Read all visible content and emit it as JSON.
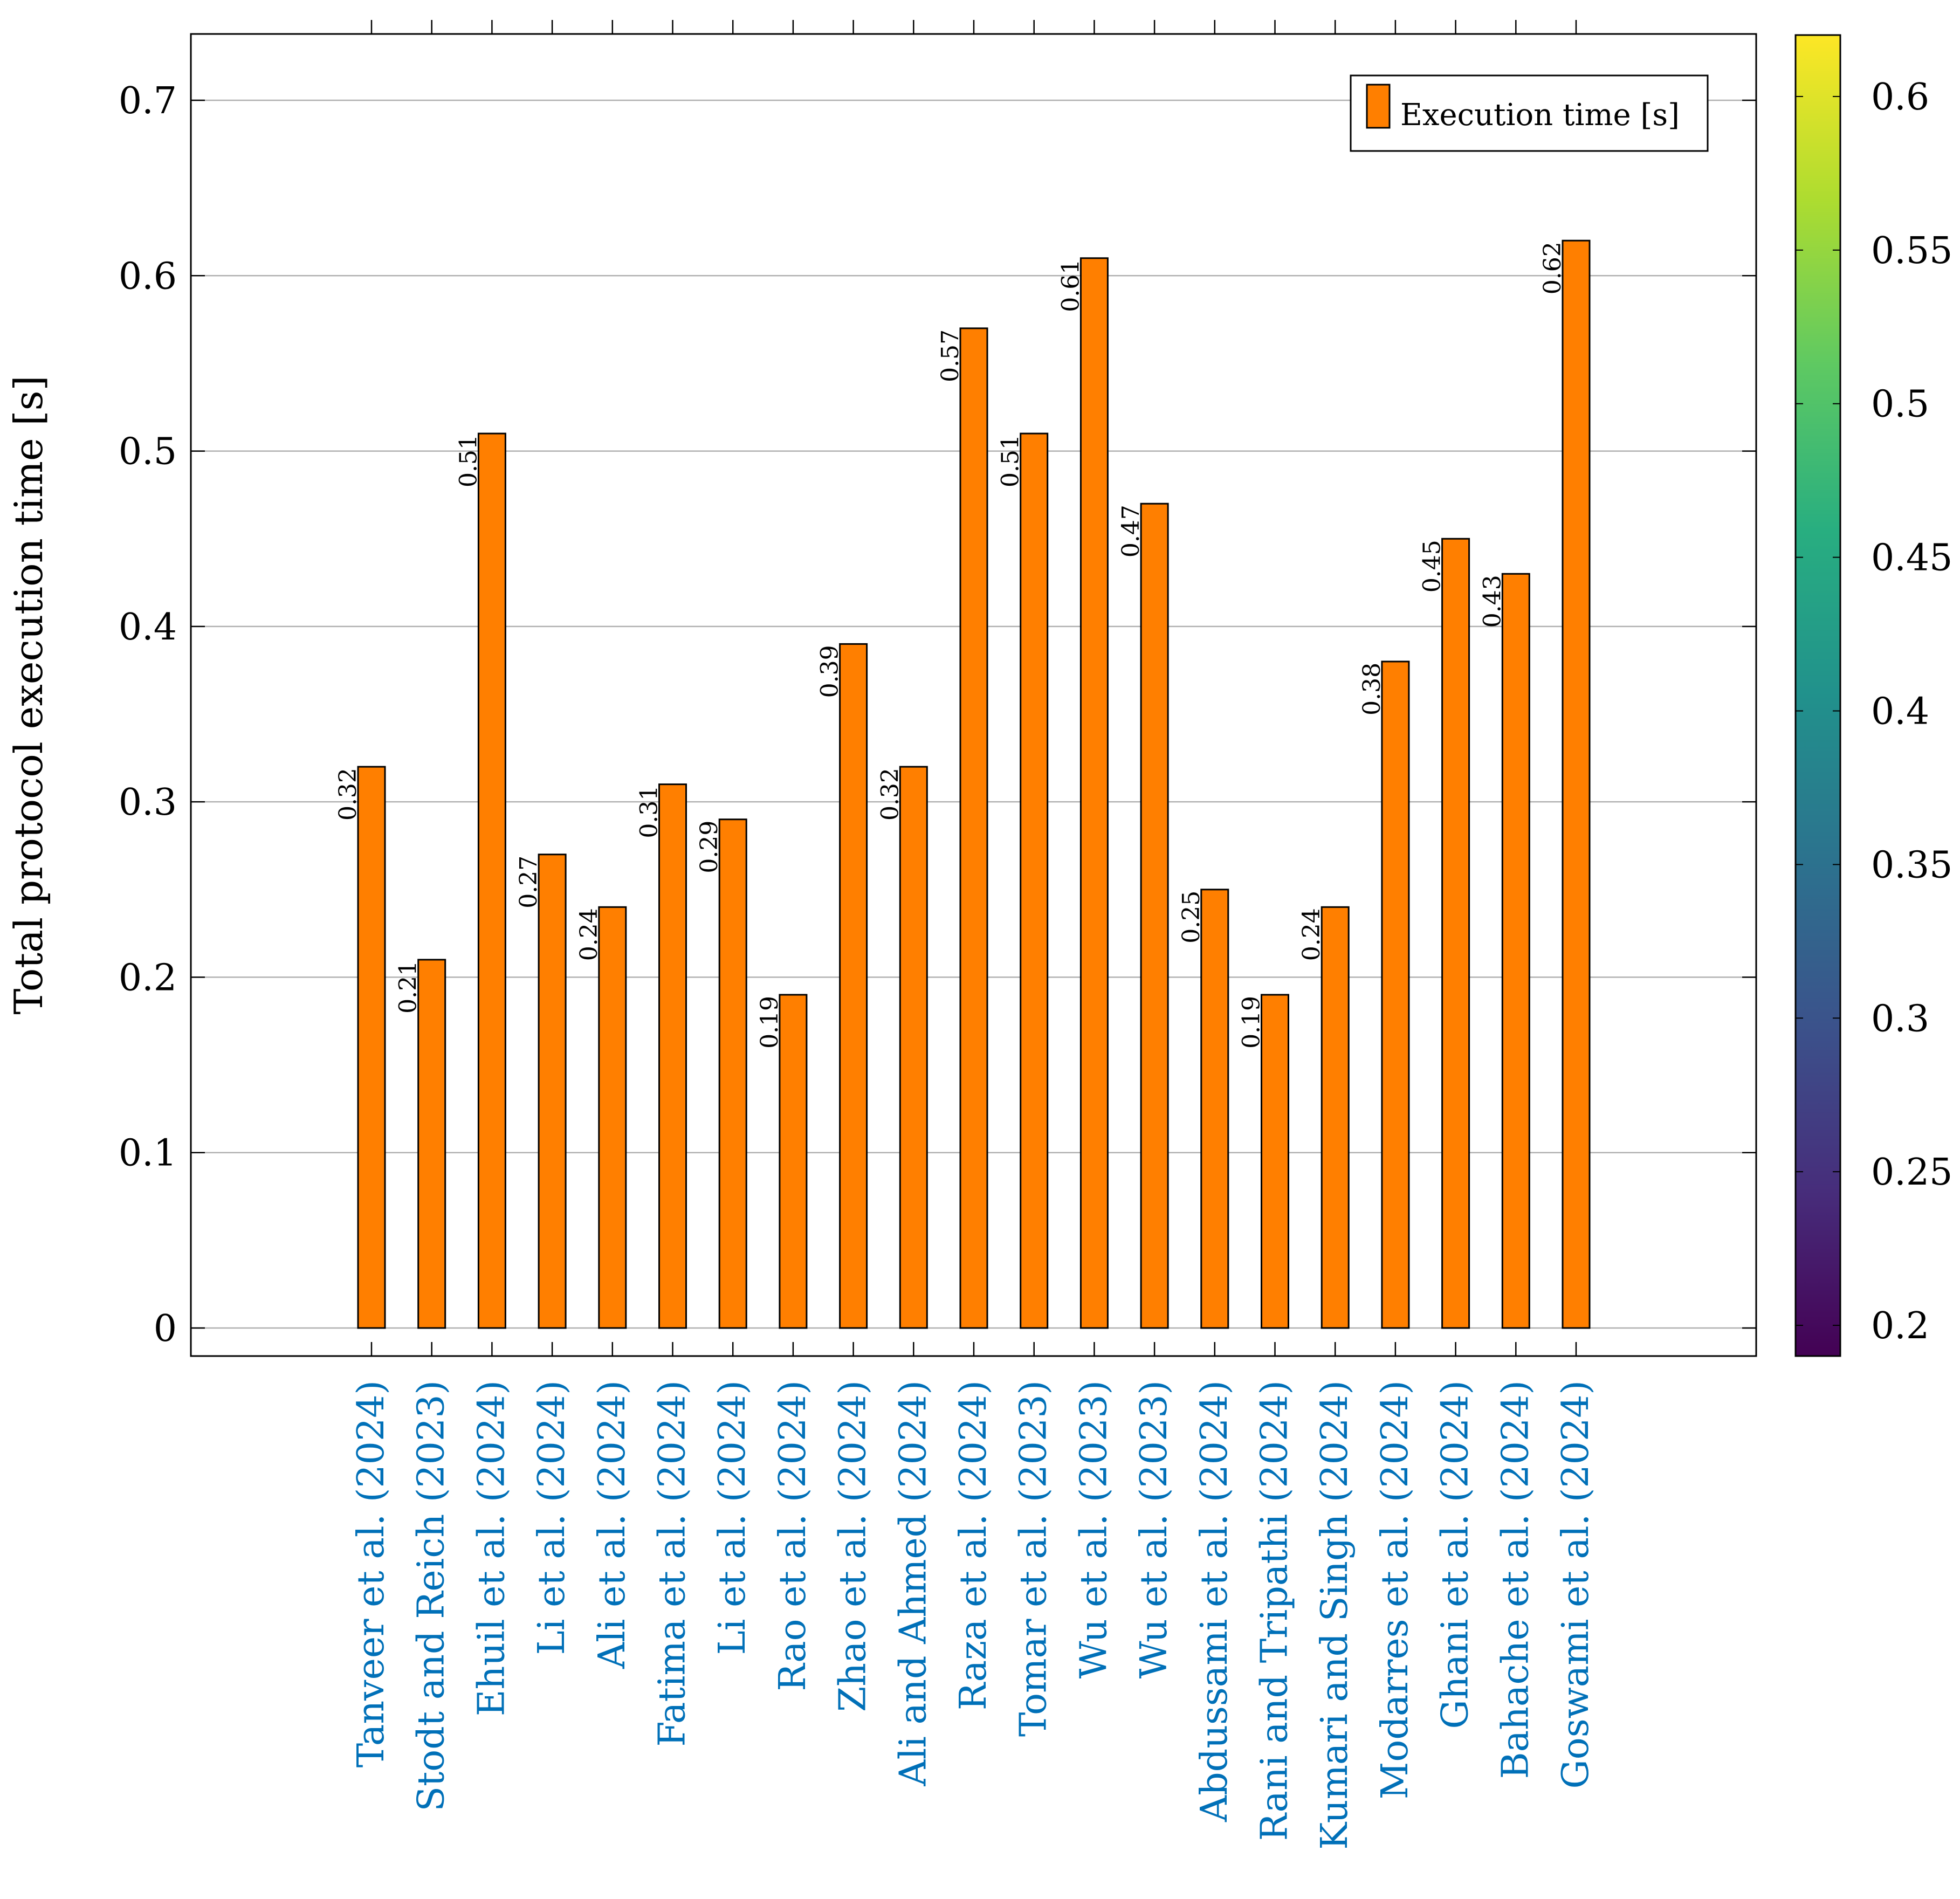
{
  "chart_data": {
    "type": "bar",
    "title": "",
    "xlabel": "",
    "ylabel": "Total protocol execution time [s]",
    "ylim": [
      -0.016,
      0.737
    ],
    "yticks": [
      0,
      0.1,
      0.2,
      0.3,
      0.4,
      0.5,
      0.6,
      0.7
    ],
    "ytick_labels": [
      "0",
      "0.1",
      "0.2",
      "0.3",
      "0.4",
      "0.5",
      "0.6",
      "0.7"
    ],
    "grid": true,
    "legend": {
      "position": "top-right",
      "entries": [
        "Execution time [s]"
      ]
    },
    "categories": [
      "Tanveer et al. (2024)",
      "Stodt and Reich (2023)",
      "Ehuil et al. (2024)",
      "Li et al. (2024)",
      "Ali et al. (2024)",
      "Fatima et al. (2024)",
      "Li et al. (2024)",
      "Rao et al. (2024)",
      "Zhao et al. (2024)",
      "Ali and Ahmed (2024)",
      "Raza et al. (2024)",
      "Tomar et al. (2023)",
      "Wu et al. (2023)",
      "Wu et al. (2023)",
      "Abdussami et al. (2024)",
      "Rani and Tripathi (2024)",
      "Kumari and Singh (2024)",
      "Modarres et al. (2024)",
      "Ghani et al. (2024)",
      "Bahache et al. (2024)",
      "Goswami et al. (2024)"
    ],
    "series": [
      {
        "name": "Execution time [s]",
        "values": [
          0.32,
          0.21,
          0.51,
          0.27,
          0.24,
          0.31,
          0.29,
          0.19,
          0.39,
          0.32,
          0.57,
          0.51,
          0.61,
          0.47,
          0.25,
          0.19,
          0.24,
          0.38,
          0.45,
          0.43,
          0.62
        ],
        "value_labels": [
          "0.32",
          "0.21",
          "0.51",
          "0.27",
          "0.24",
          "0.31",
          "0.29",
          "0.19",
          "0.39",
          "0.32",
          "0.57",
          "0.51",
          "0.61",
          "0.47",
          "0.25",
          "0.19",
          "0.24",
          "0.38",
          "0.45",
          "0.43",
          "0.62"
        ]
      }
    ],
    "colorbar": {
      "colormap": "viridis",
      "range": [
        0.19,
        0.62
      ],
      "ticks": [
        0.2,
        0.25,
        0.3,
        0.35,
        0.4,
        0.45,
        0.5,
        0.55,
        0.6
      ],
      "tick_labels": [
        "0.2",
        "0.25",
        "0.3",
        "0.35",
        "0.4",
        "0.45",
        "0.5",
        "0.55",
        "0.6"
      ]
    },
    "colors": {
      "bar_fill": "#ff7f00",
      "bar_stroke": "#000000",
      "category_label": "#0070b8",
      "grid": "#b0b0b0"
    }
  }
}
